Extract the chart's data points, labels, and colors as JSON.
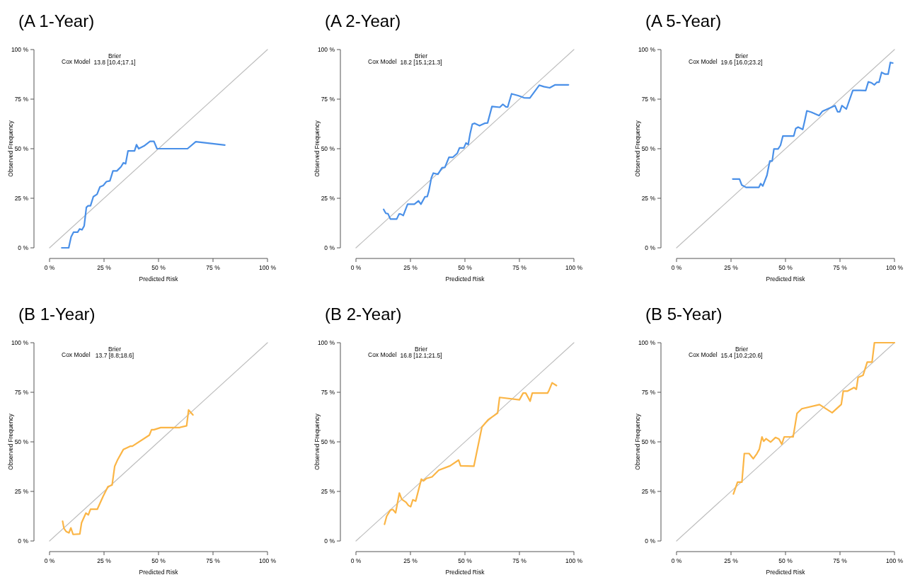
{
  "chart_data": [
    {
      "type": "line",
      "title": "(A 1-Year)",
      "xlabel": "Predicted Risk",
      "ylabel": "Observed Frequency",
      "xlim": [
        0,
        100
      ],
      "ylim": [
        0,
        100
      ],
      "xticks": [
        {
          "value": 0,
          "label": "0 %"
        },
        {
          "value": 25,
          "label": "25 %"
        },
        {
          "value": 50,
          "label": "50 %"
        },
        {
          "value": 75,
          "label": "75 %"
        },
        {
          "value": 100,
          "label": "100 %"
        }
      ],
      "yticks": [
        {
          "value": 0,
          "label": "0 %"
        },
        {
          "value": 25,
          "label": "25 %"
        },
        {
          "value": 50,
          "label": "50 %"
        },
        {
          "value": 75,
          "label": "75 %"
        },
        {
          "value": 100,
          "label": "100 %"
        }
      ],
      "annotations": [
        "Cox Model",
        "Brier",
        "13.8 [10.4;17.1]"
      ],
      "series": [
        {
          "color": "#bebebe",
          "x": [
            0,
            100
          ],
          "values": [
            0,
            100
          ]
        },
        {
          "color": "#4a90e8",
          "x": [
            5.6,
            8.8,
            9.9,
            11,
            12.9,
            13.8,
            14.9,
            15.9,
            16.9,
            17.7,
            18.8,
            20.1,
            21.8,
            23.1,
            24.6,
            26.1,
            27.7,
            29.1,
            30.9,
            32.8,
            33.9,
            34.9,
            36,
            39,
            39.9,
            40.9,
            43.4,
            46.1,
            47.9,
            49.3,
            63.3,
            67.1,
            80.4
          ],
          "values": [
            0,
            0,
            5.5,
            7.9,
            7.9,
            9.5,
            9.1,
            11.1,
            20.4,
            21.2,
            21.2,
            25.8,
            27,
            30.7,
            31.4,
            33.4,
            33.8,
            38.8,
            38.8,
            40.9,
            42.9,
            42.4,
            48.9,
            48.9,
            52,
            50,
            51.4,
            53.7,
            53.7,
            50,
            50,
            53.5,
            51.8
          ]
        }
      ]
    },
    {
      "type": "line",
      "title": "(A 2-Year)",
      "xlabel": "Predicted Risk",
      "ylabel": "Observed Frequency",
      "xlim": [
        0,
        100
      ],
      "ylim": [
        0,
        100
      ],
      "xticks": [
        {
          "value": 0,
          "label": "0 %"
        },
        {
          "value": 25,
          "label": "25 %"
        },
        {
          "value": 50,
          "label": "50 %"
        },
        {
          "value": 75,
          "label": "75 %"
        },
        {
          "value": 100,
          "label": "100 %"
        }
      ],
      "yticks": [
        {
          "value": 0,
          "label": "0 %"
        },
        {
          "value": 25,
          "label": "25 %"
        },
        {
          "value": 50,
          "label": "50 %"
        },
        {
          "value": 75,
          "label": "75 %"
        },
        {
          "value": 100,
          "label": "100 %"
        }
      ],
      "annotations": [
        "Cox Model",
        "Brier",
        "18.2 [15.1;21.3]"
      ],
      "series": [
        {
          "color": "#bebebe",
          "x": [
            0,
            100
          ],
          "values": [
            0,
            100
          ]
        },
        {
          "color": "#4a90e8",
          "x": [
            12.7,
            13.7,
            14.7,
            15.8,
            18.7,
            19.8,
            20.6,
            21.7,
            23.7,
            26.8,
            28.7,
            29.8,
            31.7,
            32.7,
            33.5,
            34.6,
            35.5,
            37.6,
            39.5,
            40.8,
            42.7,
            44.5,
            46.5,
            47.5,
            49.5,
            50.5,
            51.5,
            52.4,
            53.4,
            54.5,
            56.7,
            59,
            60.4,
            62.4,
            66,
            67.4,
            68.8,
            69.6,
            71.4,
            74.4,
            77.1,
            79.8,
            84.1,
            86.2,
            88.9,
            91.4,
            97.5
          ],
          "values": [
            19.4,
            17.4,
            17.2,
            14.5,
            14.5,
            17.1,
            17,
            16.3,
            22,
            22,
            23.7,
            22,
            25.8,
            25.8,
            28.9,
            35.3,
            37.7,
            37.1,
            40.4,
            40.6,
            45.7,
            45.7,
            47.7,
            50.4,
            50.4,
            52.9,
            52.1,
            57.7,
            62.4,
            62.8,
            61.6,
            62.8,
            63,
            71.3,
            70.9,
            72.4,
            71.1,
            71,
            77.7,
            76.8,
            75.7,
            75.6,
            82,
            81.3,
            80.7,
            82.2,
            82.2
          ]
        }
      ]
    },
    {
      "type": "line",
      "title": "(A 5-Year)",
      "xlabel": "Predicted Risk",
      "ylabel": "Observed Frequency",
      "xlim": [
        0,
        100
      ],
      "ylim": [
        0,
        100
      ],
      "xticks": [
        {
          "value": 0,
          "label": "0 %"
        },
        {
          "value": 25,
          "label": "25 %"
        },
        {
          "value": 50,
          "label": "50 %"
        },
        {
          "value": 75,
          "label": "75 %"
        },
        {
          "value": 100,
          "label": "100 %"
        }
      ],
      "yticks": [
        {
          "value": 0,
          "label": "0 %"
        },
        {
          "value": 25,
          "label": "25 %"
        },
        {
          "value": 50,
          "label": "50 %"
        },
        {
          "value": 75,
          "label": "75 %"
        },
        {
          "value": 100,
          "label": "100 %"
        }
      ],
      "annotations": [
        "Cox Model",
        "Brier",
        "19.6 [16.0;23.2]"
      ],
      "series": [
        {
          "color": "#bebebe",
          "x": [
            0,
            100
          ],
          "values": [
            0,
            100
          ]
        },
        {
          "color": "#4a90e8",
          "x": [
            25.8,
            28.9,
            29.9,
            31.9,
            37.8,
            38.6,
            39.6,
            41.5,
            42.8,
            43.9,
            44.7,
            46.6,
            47.7,
            48.8,
            53.8,
            54.7,
            55.8,
            57.9,
            58.7,
            59.8,
            61.9,
            65.4,
            66.9,
            72.7,
            73.9,
            74.9,
            75.9,
            77.9,
            80.9,
            84.1,
            86.8,
            88,
            89.5,
            90.8,
            91.9,
            92.9,
            94.1,
            95.7,
            97.1,
            98.1,
            99.2
          ],
          "values": [
            34.7,
            34.7,
            31.7,
            30.5,
            30.5,
            32.4,
            31.2,
            36.6,
            43.8,
            43.8,
            49.9,
            49.9,
            51.7,
            56.4,
            56.4,
            60.2,
            60.9,
            59.7,
            63.5,
            69.1,
            68.4,
            66.7,
            68.8,
            71.7,
            68.6,
            68.6,
            71.7,
            70,
            79.4,
            79.4,
            79.3,
            83.7,
            83.2,
            82.2,
            83.5,
            83.5,
            88.5,
            87.6,
            87.6,
            93.5,
            93.2
          ]
        }
      ]
    },
    {
      "type": "line",
      "title": "(B 1-Year)",
      "xlabel": "Predicted Risk",
      "ylabel": "Observed Frequency",
      "xlim": [
        0,
        100
      ],
      "ylim": [
        0,
        100
      ],
      "xticks": [
        {
          "value": 0,
          "label": "0 %"
        },
        {
          "value": 25,
          "label": "25 %"
        },
        {
          "value": 50,
          "label": "50 %"
        },
        {
          "value": 75,
          "label": "75 %"
        },
        {
          "value": 100,
          "label": "100 %"
        }
      ],
      "yticks": [
        {
          "value": 0,
          "label": "0 %"
        },
        {
          "value": 25,
          "label": "25 %"
        },
        {
          "value": 50,
          "label": "50 %"
        },
        {
          "value": 75,
          "label": "75 %"
        },
        {
          "value": 100,
          "label": "100 %"
        }
      ],
      "annotations": [
        "Cox Model",
        "Brier",
        "13.7 [8.8;18.6]"
      ],
      "series": [
        {
          "color": "#bebebe",
          "x": [
            0,
            100
          ],
          "values": [
            0,
            100
          ]
        },
        {
          "color": "#fbb545",
          "x": [
            6,
            6.6,
            7.7,
            8.9,
            9.8,
            10.8,
            13.9,
            14.7,
            16.7,
            17.8,
            18.8,
            21.9,
            24.5,
            26.8,
            28.7,
            29.9,
            31.3,
            33.9,
            37,
            38,
            45.8,
            46.8,
            47.9,
            51,
            59.6,
            62.9,
            63.8,
            65.8
          ],
          "values": [
            10,
            6.4,
            4.7,
            4.1,
            6.6,
            3.3,
            3.5,
            9.2,
            14.1,
            13.2,
            16,
            16,
            22.3,
            27.4,
            28.2,
            37.7,
            41.1,
            46.2,
            47.8,
            47.8,
            53.4,
            56.1,
            56.1,
            57.2,
            57.2,
            58.1,
            66.1,
            63.6
          ]
        }
      ]
    },
    {
      "type": "line",
      "title": "(B 2-Year)",
      "xlabel": "Predicted Risk",
      "ylabel": "Observed Frequency",
      "xlim": [
        0,
        100
      ],
      "ylim": [
        0,
        100
      ],
      "xticks": [
        {
          "value": 0,
          "label": "0 %"
        },
        {
          "value": 25,
          "label": "25 %"
        },
        {
          "value": 50,
          "label": "50 %"
        },
        {
          "value": 75,
          "label": "75 %"
        },
        {
          "value": 100,
          "label": "100 %"
        }
      ],
      "yticks": [
        {
          "value": 0,
          "label": "0 %"
        },
        {
          "value": 25,
          "label": "25 %"
        },
        {
          "value": 50,
          "label": "50 %"
        },
        {
          "value": 75,
          "label": "75 %"
        },
        {
          "value": 100,
          "label": "100 %"
        }
      ],
      "annotations": [
        "Cox Model",
        "Brier",
        "16.8 [12.1;21.5]"
      ],
      "series": [
        {
          "color": "#bebebe",
          "x": [
            0,
            100
          ],
          "values": [
            0,
            100
          ]
        },
        {
          "color": "#fbb545",
          "x": [
            13.1,
            14.1,
            15.8,
            16.9,
            18.2,
            19.9,
            21,
            23,
            24.1,
            25.1,
            26.1,
            27.4,
            30,
            31,
            32.3,
            34.9,
            38,
            43.2,
            47.1,
            48,
            54.1,
            57.8,
            60.6,
            65,
            65.9,
            75,
            76.7,
            77.9,
            79.9,
            80.9,
            87.9,
            88.6,
            90,
            92
          ],
          "values": [
            8.4,
            12.5,
            15.6,
            15.9,
            14.2,
            24.2,
            21,
            19.5,
            17.9,
            17.3,
            20.8,
            20.1,
            31.2,
            30.3,
            31.5,
            32.3,
            35.7,
            37.9,
            40.8,
            37.9,
            37.7,
            57.5,
            61.1,
            64.5,
            72.4,
            71.2,
            74.6,
            74.6,
            70.5,
            74.6,
            74.6,
            76,
            79.8,
            78.4
          ]
        }
      ]
    },
    {
      "type": "line",
      "title": "(B 5-Year)",
      "xlabel": "Predicted Risk",
      "ylabel": "Observed Frequency",
      "xlim": [
        0,
        100
      ],
      "ylim": [
        0,
        100
      ],
      "xticks": [
        {
          "value": 0,
          "label": "0 %"
        },
        {
          "value": 25,
          "label": "25 %"
        },
        {
          "value": 50,
          "label": "50 %"
        },
        {
          "value": 75,
          "label": "75 %"
        },
        {
          "value": 100,
          "label": "100 %"
        }
      ],
      "yticks": [
        {
          "value": 0,
          "label": "0 %"
        },
        {
          "value": 25,
          "label": "25 %"
        },
        {
          "value": 50,
          "label": "50 %"
        },
        {
          "value": 75,
          "label": "75 %"
        },
        {
          "value": 100,
          "label": "100 %"
        }
      ],
      "annotations": [
        "Cox Model",
        "Brier",
        "15.4 [10.2;20.6]"
      ],
      "series": [
        {
          "color": "#bebebe",
          "x": [
            0,
            100
          ],
          "values": [
            0,
            100
          ]
        },
        {
          "color": "#fbb545",
          "x": [
            26.1,
            28,
            30,
            31.1,
            33.3,
            35.2,
            36.9,
            38,
            39.2,
            40,
            41.1,
            43.2,
            45.4,
            47,
            48.3,
            49.4,
            53.5,
            54.2,
            55.3,
            57.5,
            65.6,
            71.4,
            75.6,
            76.5,
            78.5,
            81.5,
            82.5,
            83.3,
            85.6,
            87.5,
            89.7,
            90.8,
            100
          ],
          "values": [
            23.7,
            29.7,
            29.7,
            44.1,
            44.1,
            41.5,
            44.1,
            46.3,
            52.5,
            50.3,
            51.6,
            49.9,
            52.2,
            51.4,
            48.8,
            52.5,
            52.5,
            57.1,
            64.4,
            66.7,
            68.8,
            64.7,
            68.9,
            75.6,
            75.6,
            77.4,
            76.5,
            82.5,
            83.6,
            90.2,
            90.2,
            100,
            100
          ]
        }
      ]
    }
  ]
}
